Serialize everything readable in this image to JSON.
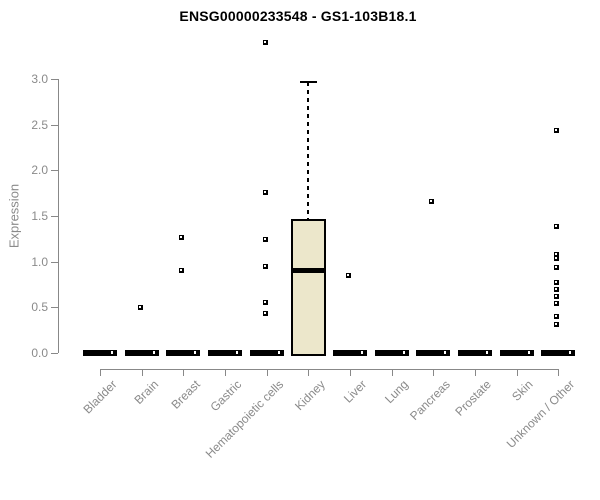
{
  "title": "ENSG00000233548 - GS1-103B18.1",
  "chart_data": {
    "type": "boxplot",
    "title": "ENSG00000233548 - GS1-103B18.1",
    "xlabel": "",
    "ylabel": "Expression",
    "ylim": [
      0,
      3.4
    ],
    "yticks": [
      "0.0",
      "0.5",
      "1.0",
      "1.5",
      "2.0",
      "2.5",
      "3.0"
    ],
    "grid": false,
    "legend": "none",
    "categories": [
      "Bladder",
      "Brain",
      "Breast",
      "Gastric",
      "Hematopoietic cells",
      "Kidney",
      "Liver",
      "Lung",
      "Pancreas",
      "Prostate",
      "Skin",
      "Unknown / Other"
    ],
    "series": [
      {
        "category": "Bladder",
        "min": 0,
        "q1": 0,
        "median": 0,
        "q3": 0,
        "max": 0,
        "outliers": []
      },
      {
        "category": "Brain",
        "min": 0,
        "q1": 0,
        "median": 0,
        "q3": 0,
        "max": 0,
        "outliers": [
          0.5
        ]
      },
      {
        "category": "Breast",
        "min": 0,
        "q1": 0,
        "median": 0,
        "q3": 0,
        "max": 0,
        "outliers": [
          1.26,
          0.9
        ]
      },
      {
        "category": "Gastric",
        "min": 0,
        "q1": 0,
        "median": 0,
        "q3": 0,
        "max": 0,
        "outliers": []
      },
      {
        "category": "Hematopoietic cells",
        "min": 0,
        "q1": 0,
        "median": 0,
        "q3": 0,
        "max": 0,
        "outliers": [
          3.4,
          1.76,
          1.24,
          0.95,
          0.55,
          0.43
        ]
      },
      {
        "category": "Kidney",
        "min": 0,
        "q1": 0,
        "median": 0.9,
        "q3": 1.47,
        "max": 2.97,
        "outliers": []
      },
      {
        "category": "Liver",
        "min": 0,
        "q1": 0,
        "median": 0,
        "q3": 0,
        "max": 0,
        "outliers": [
          0.85
        ]
      },
      {
        "category": "Lung",
        "min": 0,
        "q1": 0,
        "median": 0,
        "q3": 0,
        "max": 0,
        "outliers": []
      },
      {
        "category": "Pancreas",
        "min": 0,
        "q1": 0,
        "median": 0,
        "q3": 0,
        "max": 0,
        "outliers": [
          1.66
        ]
      },
      {
        "category": "Prostate",
        "min": 0,
        "q1": 0,
        "median": 0,
        "q3": 0,
        "max": 0,
        "outliers": []
      },
      {
        "category": "Skin",
        "min": 0,
        "q1": 0,
        "median": 0,
        "q3": 0,
        "max": 0,
        "outliers": []
      },
      {
        "category": "Unknown / Other",
        "min": 0,
        "q1": 0,
        "median": 0,
        "q3": 0,
        "max": 0,
        "outliers": [
          2.44,
          1.39,
          1.08,
          1.03,
          0.94,
          0.77,
          0.7,
          0.62,
          0.54,
          0.4,
          0.31
        ]
      }
    ],
    "colors": {
      "box_fill": "#ece7cb",
      "box_border": "#000000",
      "median": "#000000",
      "zero_bar": "#000000",
      "axis": "#888888",
      "tick_text": "#8a8a8a",
      "title_text": "#000000",
      "background": "#ffffff"
    }
  }
}
